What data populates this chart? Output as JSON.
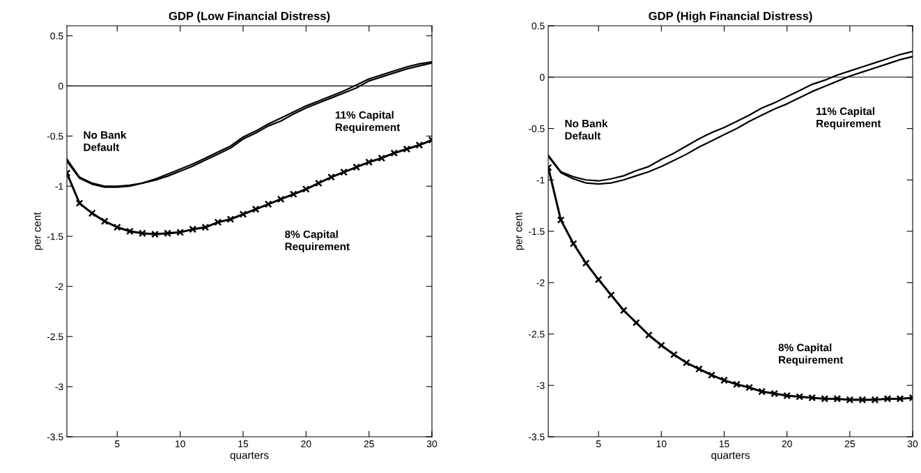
{
  "chart_data": [
    {
      "type": "line",
      "title": "GDP (Low Financial Distress)",
      "xlabel": "quarters",
      "ylabel": "per cent",
      "x": [
        1,
        2,
        3,
        4,
        5,
        6,
        7,
        8,
        9,
        10,
        11,
        12,
        13,
        14,
        15,
        16,
        17,
        18,
        19,
        20,
        21,
        22,
        23,
        24,
        25,
        26,
        27,
        28,
        29,
        30
      ],
      "series": [
        {
          "name": "No Bank\nDefault",
          "color": "#000000",
          "marker": "none",
          "values": [
            -0.73,
            -0.91,
            -0.97,
            -1.0,
            -1.0,
            -0.99,
            -0.97,
            -0.93,
            -0.88,
            -0.83,
            -0.78,
            -0.72,
            -0.66,
            -0.6,
            -0.51,
            -0.45,
            -0.38,
            -0.32,
            -0.26,
            -0.2,
            -0.15,
            -0.1,
            -0.05,
            0.01,
            0.07,
            0.11,
            0.15,
            0.19,
            0.22,
            0.24
          ]
        },
        {
          "name": "11% Capital\nRequirement",
          "color": "#000000",
          "marker": "none",
          "values": [
            -0.75,
            -0.92,
            -0.98,
            -1.01,
            -1.01,
            -1.0,
            -0.97,
            -0.94,
            -0.9,
            -0.85,
            -0.8,
            -0.74,
            -0.68,
            -0.62,
            -0.53,
            -0.47,
            -0.4,
            -0.35,
            -0.28,
            -0.22,
            -0.17,
            -0.12,
            -0.07,
            -0.02,
            0.05,
            0.09,
            0.13,
            0.17,
            0.2,
            0.23
          ]
        },
        {
          "name": "8% Capital\nRequirement",
          "color": "#000000",
          "marker": "cross",
          "values": [
            -0.87,
            -1.17,
            -1.27,
            -1.35,
            -1.41,
            -1.45,
            -1.47,
            -1.48,
            -1.47,
            -1.46,
            -1.43,
            -1.41,
            -1.36,
            -1.33,
            -1.28,
            -1.23,
            -1.18,
            -1.13,
            -1.08,
            -1.03,
            -0.97,
            -0.91,
            -0.86,
            -0.81,
            -0.76,
            -0.72,
            -0.67,
            -0.63,
            -0.59,
            -0.54
          ]
        }
      ],
      "xlim": [
        1,
        30
      ],
      "xticks": [
        5,
        10,
        15,
        20,
        25,
        30
      ],
      "ylim": [
        -3.5,
        0.6
      ],
      "yticks": [
        -3.5,
        -3,
        -2.5,
        -2,
        -1.5,
        -1,
        -0.5,
        0,
        0.5
      ],
      "ref_lines": [
        {
          "axis": "y",
          "value": 0,
          "color": "#000000"
        }
      ],
      "grid": false,
      "legend": false,
      "line_style": "solid"
    },
    {
      "type": "line",
      "title": "GDP (High Financial Distress)",
      "xlabel": "quarters",
      "ylabel": "per cent",
      "x": [
        1,
        2,
        3,
        4,
        5,
        6,
        7,
        8,
        9,
        10,
        11,
        12,
        13,
        14,
        15,
        16,
        17,
        18,
        19,
        20,
        21,
        22,
        23,
        24,
        25,
        26,
        27,
        28,
        29,
        30
      ],
      "series": [
        {
          "name": "No Bank\nDefault",
          "color": "#000000",
          "marker": "none",
          "values": [
            -0.76,
            -0.92,
            -0.97,
            -1.0,
            -1.01,
            -0.99,
            -0.96,
            -0.91,
            -0.87,
            -0.8,
            -0.74,
            -0.67,
            -0.6,
            -0.54,
            -0.49,
            -0.43,
            -0.37,
            -0.3,
            -0.25,
            -0.19,
            -0.13,
            -0.07,
            -0.03,
            0.02,
            0.06,
            0.1,
            0.14,
            0.18,
            0.22,
            0.25
          ]
        },
        {
          "name": "11% Capital\nRequirement",
          "color": "#000000",
          "marker": "none",
          "values": [
            -0.77,
            -0.93,
            -0.99,
            -1.03,
            -1.04,
            -1.03,
            -1.0,
            -0.96,
            -0.92,
            -0.87,
            -0.81,
            -0.75,
            -0.68,
            -0.62,
            -0.56,
            -0.5,
            -0.43,
            -0.37,
            -0.31,
            -0.26,
            -0.2,
            -0.14,
            -0.09,
            -0.04,
            0.01,
            0.05,
            0.09,
            0.13,
            0.17,
            0.2
          ]
        },
        {
          "name": "8% Capital\nRequirement",
          "color": "#000000",
          "marker": "cross",
          "values": [
            -0.88,
            -1.39,
            -1.62,
            -1.81,
            -1.97,
            -2.12,
            -2.27,
            -2.39,
            -2.51,
            -2.61,
            -2.7,
            -2.78,
            -2.84,
            -2.9,
            -2.95,
            -2.99,
            -3.02,
            -3.06,
            -3.08,
            -3.1,
            -3.11,
            -3.12,
            -3.13,
            -3.13,
            -3.14,
            -3.14,
            -3.14,
            -3.13,
            -3.13,
            -3.12
          ]
        }
      ],
      "xlim": [
        1,
        30
      ],
      "xticks": [
        5,
        10,
        15,
        20,
        25,
        30
      ],
      "ylim": [
        -3.5,
        0.5
      ],
      "yticks": [
        -3.5,
        -3,
        -2.5,
        -2,
        -1.5,
        -1,
        -0.5,
        0,
        0.5
      ],
      "ref_lines": [
        {
          "axis": "y",
          "value": 0,
          "color": "#000000"
        }
      ],
      "grid": false,
      "legend": false,
      "line_style": "solid"
    }
  ]
}
